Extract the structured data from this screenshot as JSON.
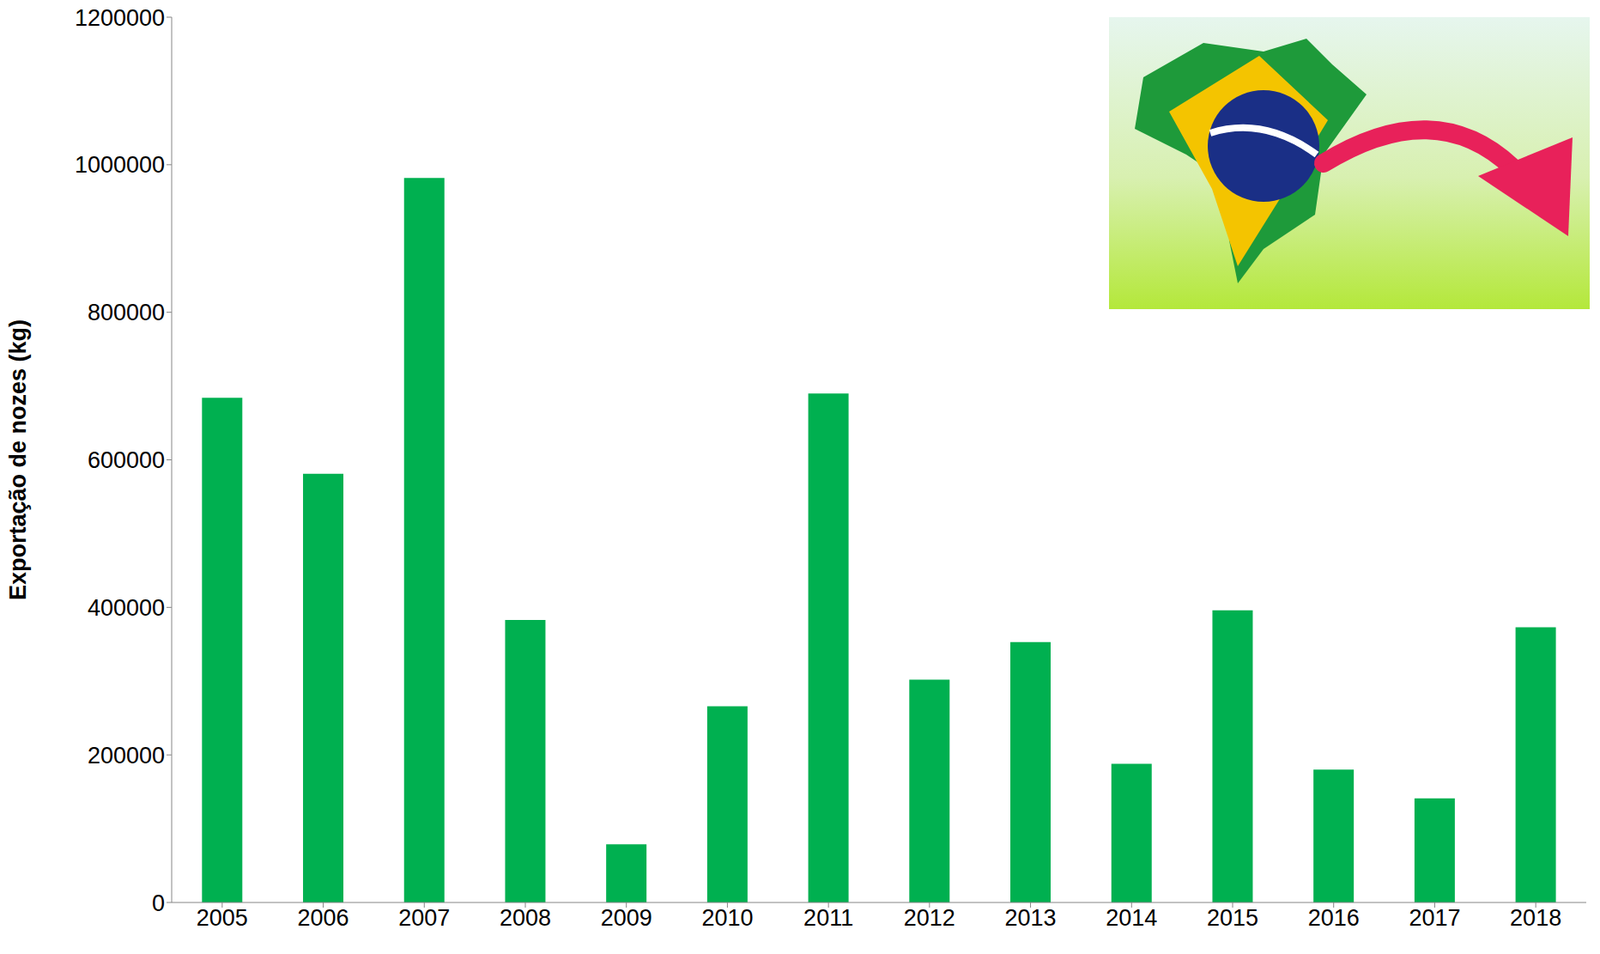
{
  "chart_data": {
    "type": "bar",
    "y_label": "Exportação de nozes (kg)",
    "categories": [
      "2005",
      "2006",
      "2007",
      "2008",
      "2009",
      "2010",
      "2011",
      "2012",
      "2013",
      "2014",
      "2015",
      "2016",
      "2017",
      "2018"
    ],
    "values": [
      684000,
      581000,
      982000,
      383000,
      79000,
      266000,
      690000,
      302000,
      353000,
      188000,
      396000,
      180000,
      141000,
      373000
    ],
    "color": "#00b050",
    "ylim": [
      0,
      1200000
    ],
    "yticks": [
      0,
      200000,
      400000,
      600000,
      800000,
      1000000,
      1200000
    ],
    "grid": false
  }
}
